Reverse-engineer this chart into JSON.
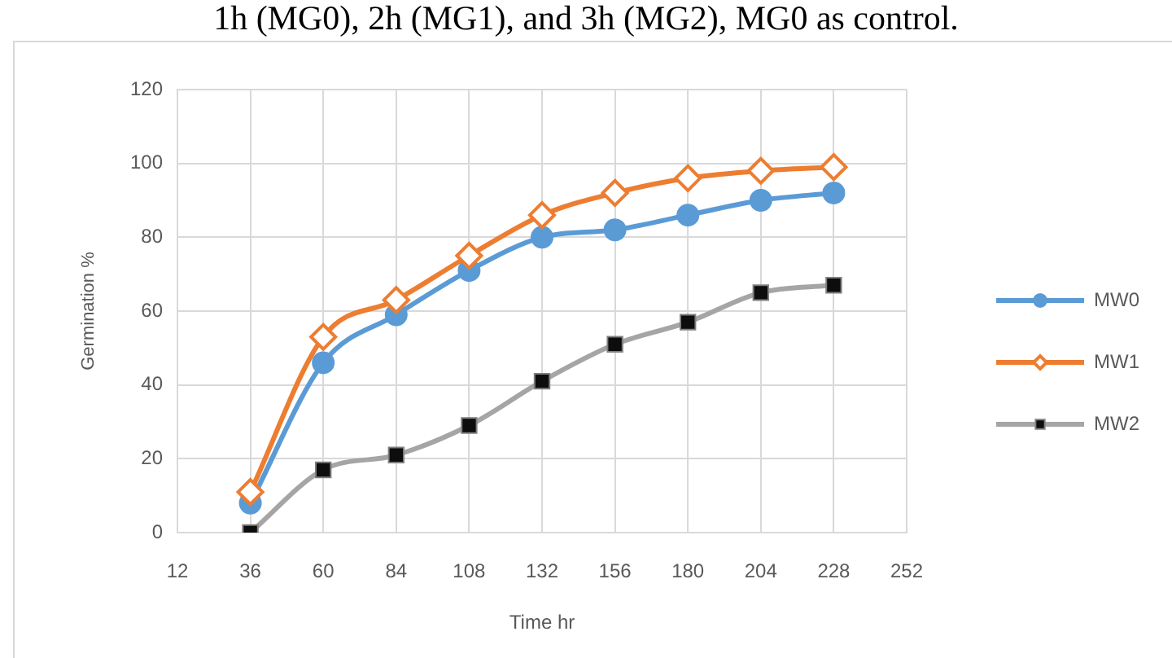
{
  "chart_data": {
    "type": "line",
    "annotations": [
      "1h (MG0), 2h (MG1), and 3h (MG2), MG0 as control."
    ],
    "xlabel": "Time hr",
    "ylabel": "Germination %",
    "x": [
      36,
      60,
      84,
      108,
      132,
      156,
      180,
      204,
      228
    ],
    "series": [
      {
        "name": "MW0",
        "color": "#5b9bd5",
        "marker": "circle",
        "values": [
          8,
          46,
          59,
          71,
          80,
          82,
          86,
          90,
          92
        ]
      },
      {
        "name": "MW1",
        "color": "#ed7d31",
        "marker": "diamond",
        "values": [
          11,
          53,
          63,
          75,
          86,
          92,
          96,
          98,
          99
        ]
      },
      {
        "name": "MW2",
        "color": "#a5a5a5",
        "marker": "square",
        "values": [
          0,
          17,
          21,
          29,
          41,
          51,
          57,
          65,
          67
        ]
      }
    ],
    "xlim": [
      12,
      252
    ],
    "xticks": [
      12,
      36,
      60,
      84,
      108,
      132,
      156,
      180,
      204,
      228,
      252
    ],
    "ylim": [
      0,
      120
    ],
    "yticks": [
      0,
      20,
      40,
      60,
      80,
      100,
      120
    ],
    "grid": true,
    "legend": "right",
    "line_style": "solid"
  }
}
